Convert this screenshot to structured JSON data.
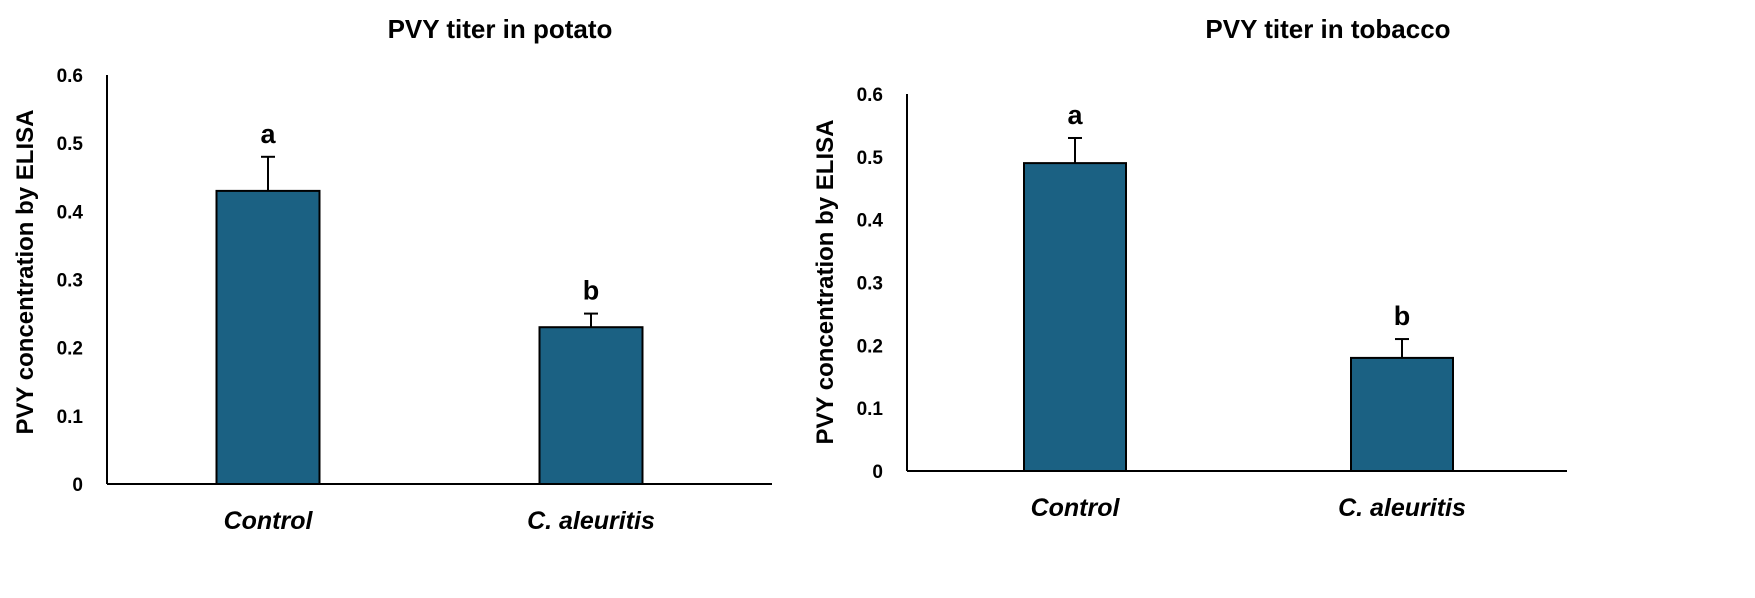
{
  "chart_data": [
    {
      "type": "bar",
      "title": "PVY titer in potato",
      "xlabel": "",
      "ylabel": "PVY concentration  by ELISA",
      "ylim": [
        0,
        0.6
      ],
      "yticks": [
        "0",
        "0.1",
        "0.2",
        "0.3",
        "0.4",
        "0.5",
        "0.6"
      ],
      "categories": [
        "Control",
        "C. aleuritis"
      ],
      "values": [
        0.43,
        0.23
      ],
      "errors": [
        0.05,
        0.02
      ],
      "significance": [
        "a",
        "b"
      ],
      "bar_color": "#1b6183"
    },
    {
      "type": "bar",
      "title": "PVY titer in tobacco",
      "xlabel": "",
      "ylabel": "PVY concentration by ELISA",
      "ylim": [
        0,
        0.6
      ],
      "yticks": [
        "0",
        "0.1",
        "0.2",
        "0.3",
        "0.4",
        "0.5",
        "0.6"
      ],
      "categories": [
        "Control",
        "C. aleuritis"
      ],
      "values": [
        0.49,
        0.18
      ],
      "errors": [
        0.04,
        0.03
      ],
      "significance": [
        "a",
        "b"
      ],
      "bar_color": "#1b6183"
    }
  ]
}
